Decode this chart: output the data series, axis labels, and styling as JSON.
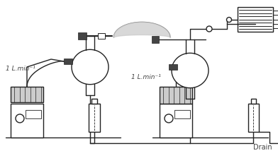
{
  "bg_color": "#ffffff",
  "line_color": "#222222",
  "dark_gray": "#444444",
  "mid_gray": "#888888",
  "light_gray": "#cccccc",
  "spray_gray": "#c8c8c8",
  "text_color": "#444444",
  "label_left": "1 L.min⁻¹",
  "label_right": "1 L.min⁻¹",
  "label_drain": "Drain",
  "fig_width": 3.92,
  "fig_height": 2.17,
  "dpi": 100,
  "lw": 1.0,
  "lw_thick": 1.5
}
